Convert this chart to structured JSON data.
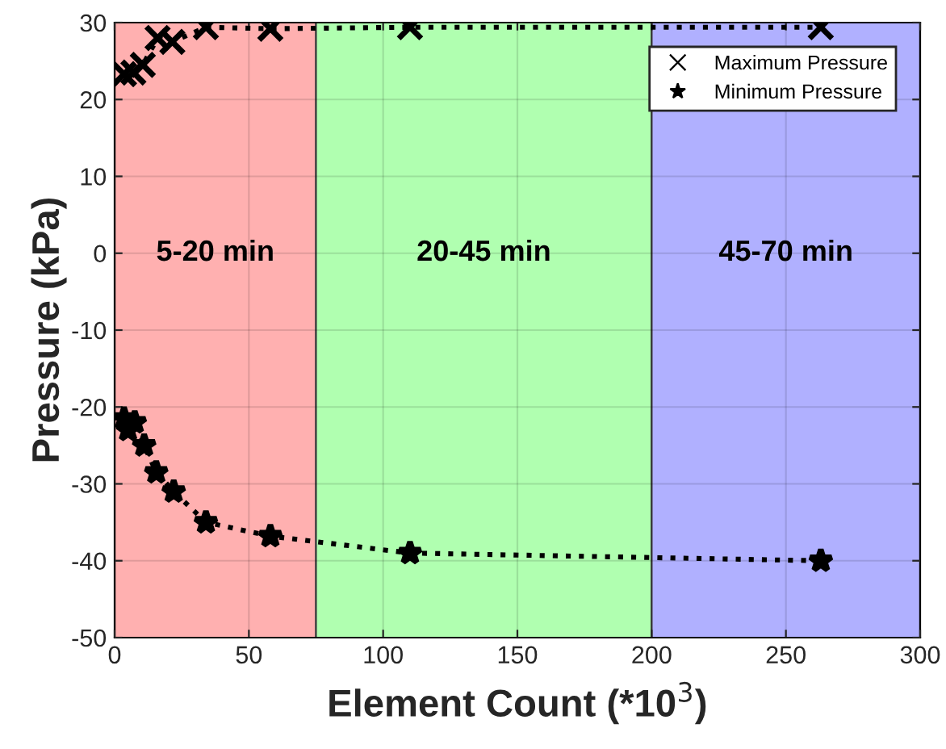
{
  "chart_data": {
    "type": "line",
    "xlabel": "Element Count (*10$^{3}$)",
    "ylabel": "Pressure (kPa)",
    "xlim": [
      0,
      300
    ],
    "xticks": [
      0,
      50,
      100,
      150,
      200,
      250,
      300
    ],
    "ylim": [
      -50,
      30
    ],
    "yticks": [
      -50,
      -40,
      -30,
      -20,
      -10,
      0,
      10,
      20,
      30
    ],
    "grid": true,
    "legend": "top right",
    "line_style": "dotted",
    "series": [
      {
        "name": "Maximum Pressure",
        "color": "#000000",
        "marker": "cross",
        "x": [
          3.5,
          7,
          10.5,
          16,
          21.5,
          34,
          58,
          110,
          263
        ],
        "values": [
          23.3,
          23.5,
          24.5,
          28,
          27.5,
          29.4,
          29.2,
          29.4,
          29.4
        ]
      },
      {
        "name": "Minimum Pressure",
        "color": "#000000",
        "marker": "star",
        "x": [
          3.5,
          5,
          7.5,
          11,
          15.5,
          22,
          34,
          58,
          110,
          263
        ],
        "values": [
          -21.5,
          -23,
          -22,
          -25,
          -28.5,
          -31,
          -35,
          -36.8,
          -39,
          -40
        ]
      }
    ],
    "bands": [
      {
        "axis": "x",
        "from": 0,
        "to": 75,
        "label": "5-20 min",
        "color": "#ffb0b0"
      },
      {
        "axis": "x",
        "from": 75,
        "to": 200,
        "label": "20-45 min",
        "color": "#b0ffb0"
      },
      {
        "axis": "x",
        "from": 200,
        "to": 300,
        "label": "45-70 min",
        "color": "#b0b0ff"
      }
    ]
  }
}
